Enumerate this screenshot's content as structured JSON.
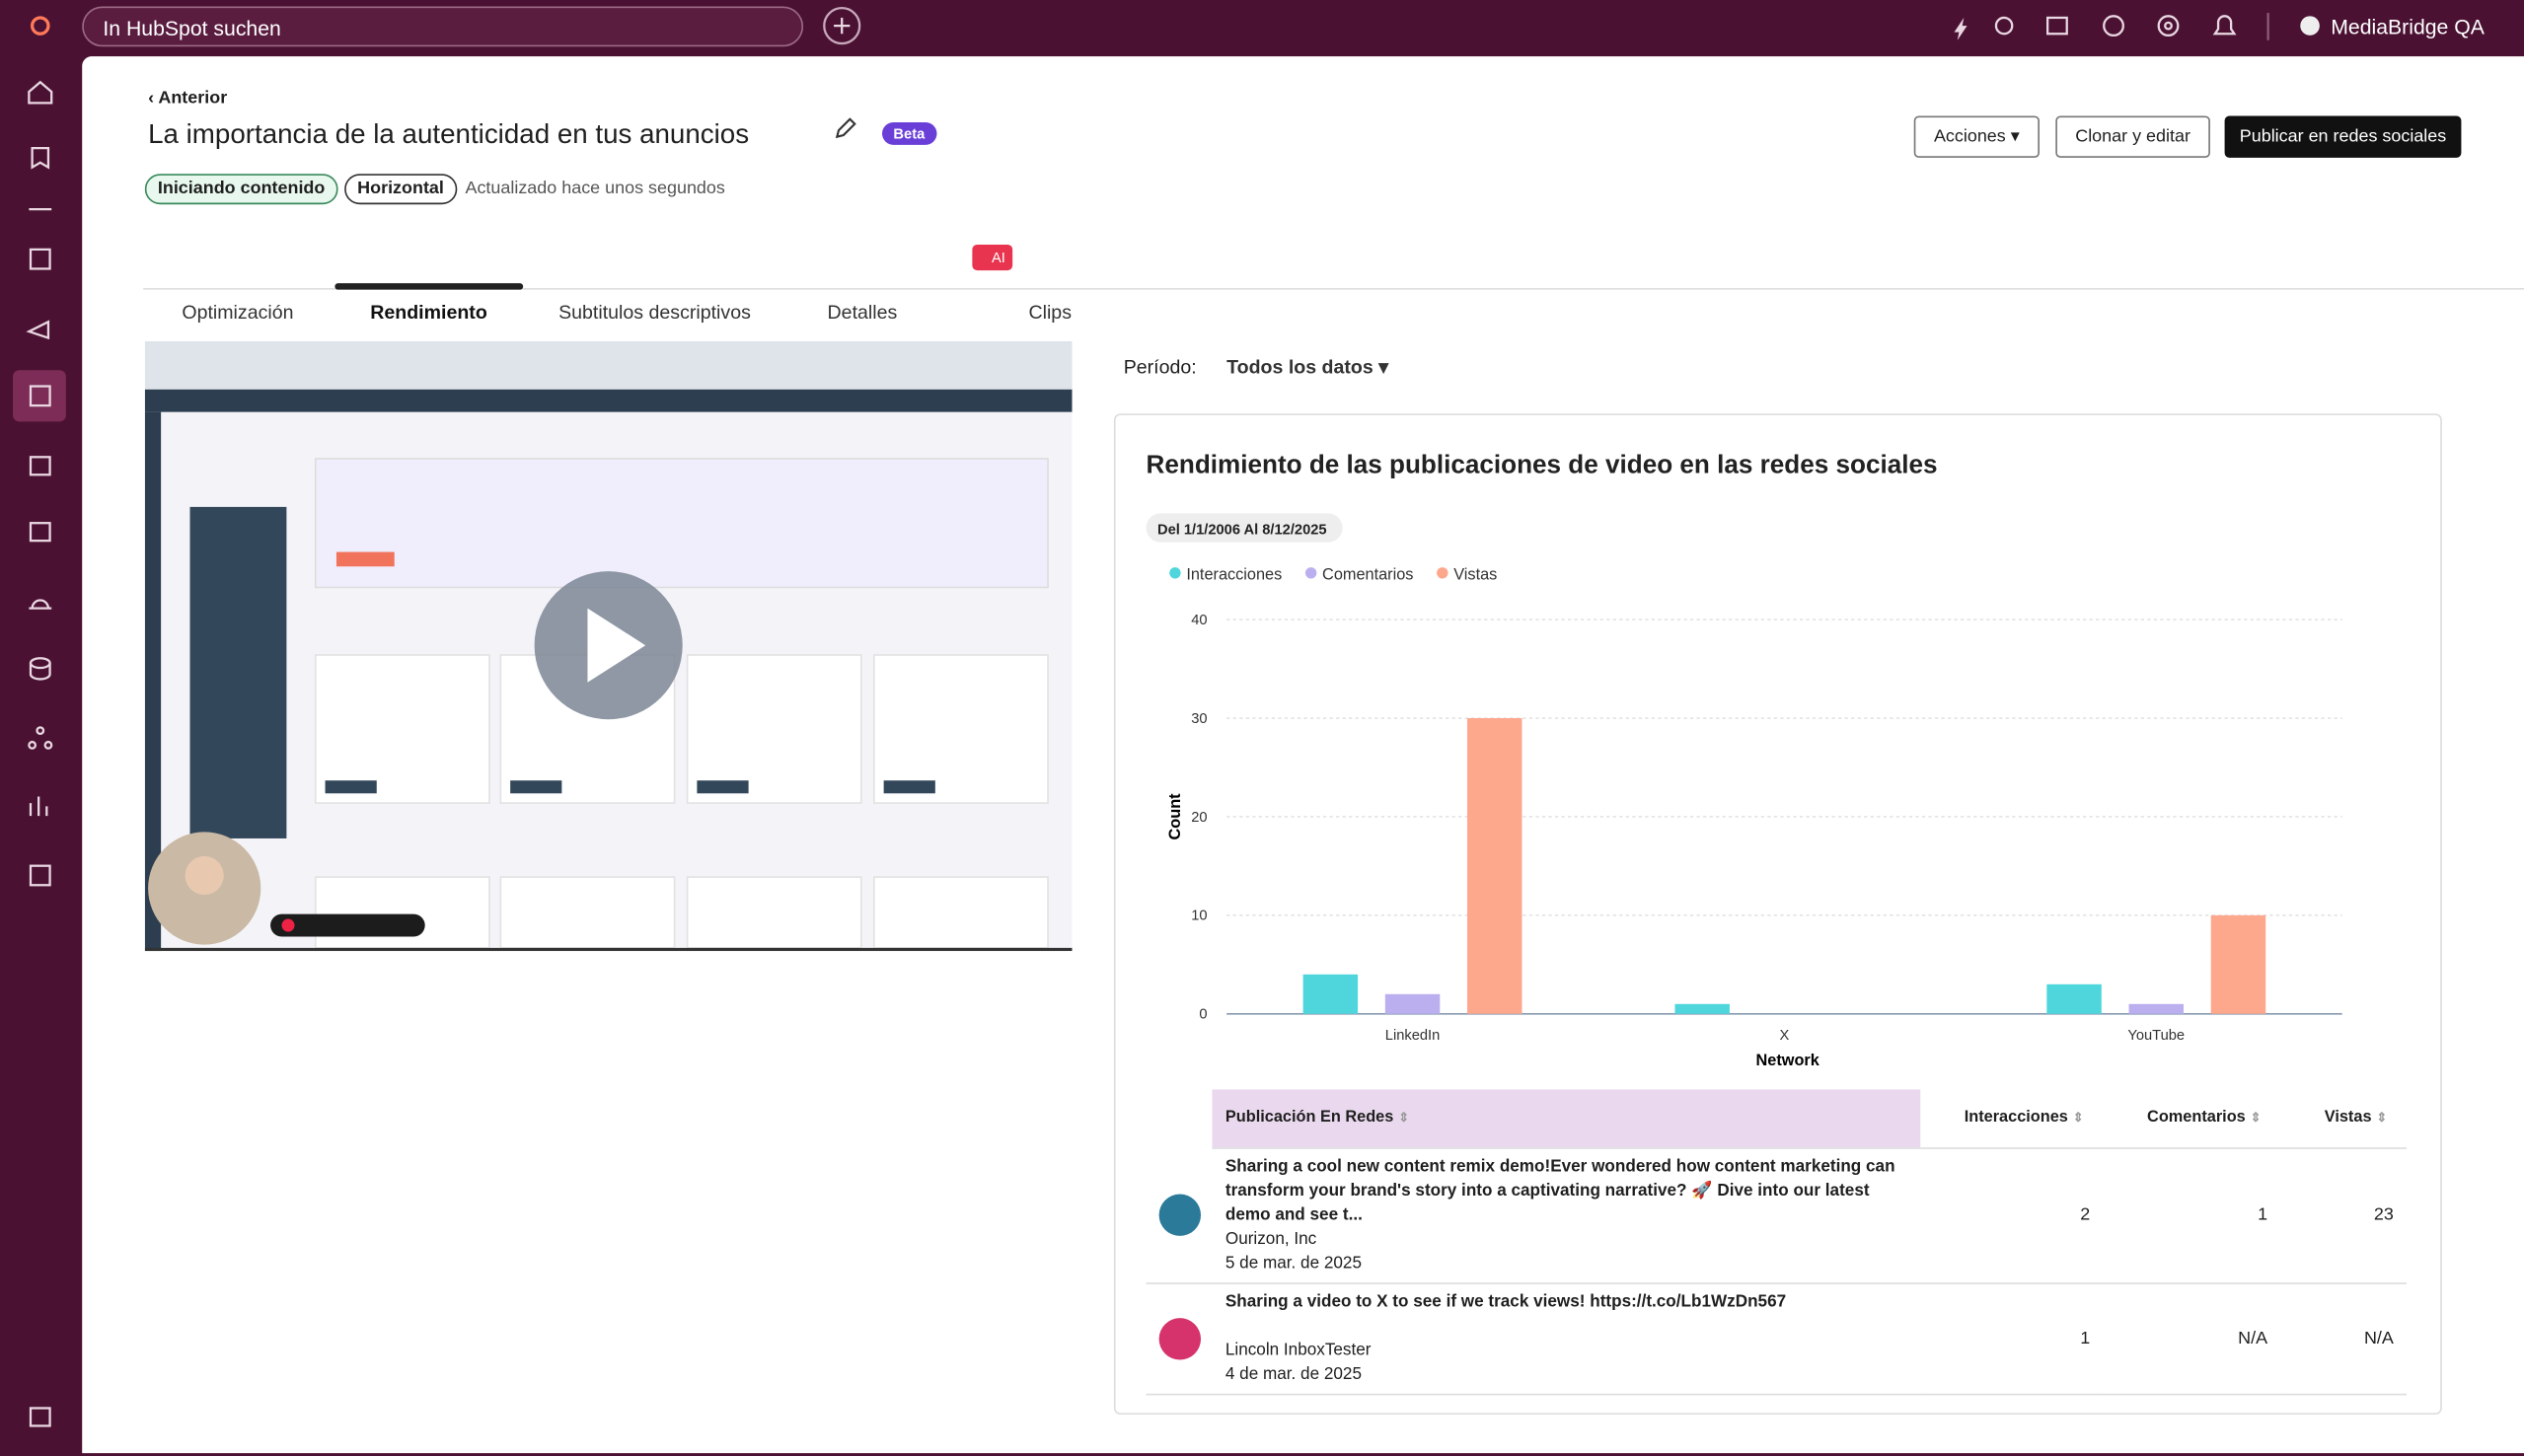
{
  "search_placeholder": "In HubSpot suchen",
  "account": "MediaBridge QA",
  "header": {
    "back": "Anterior",
    "title": "La importancia de la autenticidad en tus anuncios",
    "badge": "Beta",
    "tags": [
      "Iniciando contenido",
      "Horizontal"
    ],
    "updated": "Actualizado hace unos segundos",
    "buttons": [
      "Acciones",
      "Clonar y editar",
      "Publicar en redes sociales"
    ]
  },
  "tabs": [
    "Optimización",
    "Rendimiento",
    "Subtitulos descriptivos",
    "Detalles",
    "Clips"
  ],
  "ai_badge": "AI",
  "period": {
    "label": "Período:",
    "value": "Todos los datos"
  },
  "chart_data": {
    "type": "bar",
    "title": "Rendimiento de las publicaciones de video en las redes sociales",
    "subtitle": "Del 1/1/2006 Al 8/12/2025",
    "categories": [
      "LinkedIn",
      "X",
      "YouTube"
    ],
    "series": [
      {
        "name": "Interacciones",
        "color": "#4fd6dc",
        "values": [
          4,
          1,
          3
        ]
      },
      {
        "name": "Comentarios",
        "color": "#bcaff0",
        "values": [
          2,
          null,
          1
        ]
      },
      {
        "name": "Vistas",
        "color": "#fda78d",
        "values": [
          30,
          null,
          10
        ]
      }
    ],
    "ylim": [
      0,
      40
    ],
    "yticks": [
      0,
      10,
      20,
      30,
      40
    ],
    "xlabel": "Network",
    "ylabel": "Count",
    "grid": true
  },
  "table": {
    "columns": [
      "Publicación En Redes",
      "Interacciones",
      "Comentarios",
      "Vistas"
    ],
    "rows": [
      {
        "text": "Sharing a cool new content remix demo!Ever wondered how content marketing can transform your brand's story into a captivating narrative? 🚀 Dive into our latest demo and see t...",
        "account": "Ourizon, Inc",
        "date": "5 de mar. de 2025",
        "values": [
          2,
          1,
          23
        ]
      },
      {
        "text": "Sharing a video to X to see if we track views! https://t.co/Lb1WzDn567",
        "account": "Lincoln InboxTester",
        "date": "4 de mar. de 2025",
        "values": [
          1,
          "N/A",
          "N/A"
        ]
      }
    ]
  }
}
